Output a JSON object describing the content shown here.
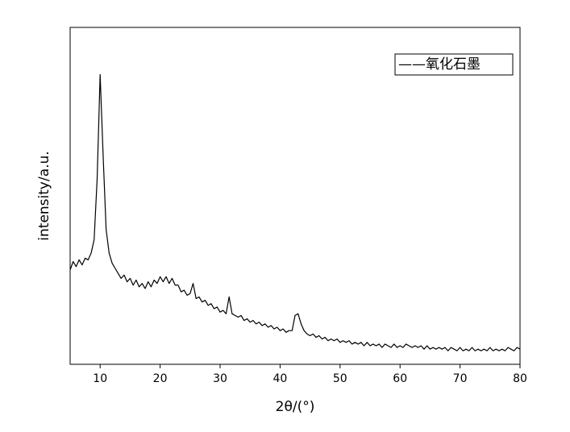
{
  "chart_data": {
    "type": "line",
    "xlabel": "2θ/(°)",
    "ylabel": "intensity/a.u.",
    "x": [
      5,
      5.5,
      6,
      6.5,
      7,
      7.5,
      8,
      8.5,
      9,
      9.5,
      10,
      10.5,
      11,
      11.5,
      12,
      12.5,
      13,
      13.5,
      14,
      14.5,
      15,
      15.5,
      16,
      16.5,
      17,
      17.5,
      18,
      18.5,
      19,
      19.5,
      20,
      20.5,
      21,
      21.5,
      22,
      22.5,
      23,
      23.5,
      24,
      24.5,
      25,
      25.5,
      26,
      26.5,
      27,
      27.5,
      28,
      28.5,
      29,
      29.5,
      30,
      30.5,
      31,
      31.5,
      32,
      32.5,
      33,
      33.5,
      34,
      34.5,
      35,
      35.5,
      36,
      36.5,
      37,
      37.5,
      38,
      38.5,
      39,
      39.5,
      40,
      40.5,
      41,
      41.5,
      42,
      42.5,
      43,
      43.5,
      44,
      44.5,
      45,
      45.5,
      46,
      46.5,
      47,
      47.5,
      48,
      48.5,
      49,
      49.5,
      50,
      50.5,
      51,
      51.5,
      52,
      52.5,
      53,
      53.5,
      54,
      54.5,
      55,
      55.5,
      56,
      56.5,
      57,
      57.5,
      58,
      58.5,
      59,
      59.5,
      60,
      60.5,
      61,
      61.5,
      62,
      62.5,
      63,
      63.5,
      64,
      64.5,
      65,
      65.5,
      66,
      66.5,
      67,
      67.5,
      68,
      68.5,
      69,
      69.5,
      70,
      70.5,
      71,
      71.5,
      72,
      72.5,
      73,
      73.5,
      74,
      74.5,
      75,
      75.5,
      76,
      76.5,
      77,
      77.5,
      78,
      78.5,
      79,
      79.5,
      80
    ],
    "series": [
      {
        "name": "——氧化石墨",
        "color": "#000000",
        "values": [
          28,
          30.5,
          29,
          31,
          29.5,
          31.5,
          31,
          33,
          37,
          55,
          86,
          62,
          40,
          33,
          30,
          28.5,
          27,
          25.5,
          26.5,
          24.5,
          25.5,
          23.5,
          25,
          23,
          24,
          22.5,
          24.5,
          23,
          25,
          24,
          26,
          24.5,
          26,
          24,
          25.5,
          23.5,
          23.5,
          21.5,
          22,
          20.5,
          21,
          24,
          19.5,
          20,
          18.5,
          19,
          17.5,
          18,
          16.5,
          17,
          15.5,
          16,
          15,
          20,
          15,
          14.5,
          14,
          14.5,
          13,
          13.5,
          12.5,
          13,
          12,
          12.5,
          11.5,
          12,
          11,
          11.5,
          10.5,
          11,
          10,
          10.5,
          9.5,
          10,
          10,
          14.5,
          15,
          12,
          10,
          9,
          8.5,
          9,
          8,
          8.5,
          7.5,
          8,
          7,
          7.5,
          7,
          7.5,
          6.5,
          7,
          6.5,
          7,
          6,
          6.5,
          6,
          6.5,
          5.5,
          6.5,
          5.5,
          6,
          5.5,
          6,
          5,
          6,
          5.5,
          5,
          6,
          5,
          5.5,
          5,
          6,
          5.5,
          5,
          5.5,
          5,
          5.5,
          4.5,
          5.5,
          4.5,
          5,
          4.5,
          5,
          4.5,
          5,
          4,
          5,
          4.5,
          4,
          5,
          4,
          4.5,
          4,
          5,
          4,
          4.5,
          4,
          4.5,
          4,
          5,
          4,
          4.5,
          4,
          4.5,
          4,
          5,
          4.5,
          4,
          5,
          4.5
        ]
      }
    ],
    "xlim": [
      5,
      80
    ],
    "xticks": [
      10,
      20,
      30,
      40,
      50,
      60,
      70,
      80
    ],
    "ylim": [
      0,
      100
    ],
    "legend": "upper right",
    "grid": false
  }
}
